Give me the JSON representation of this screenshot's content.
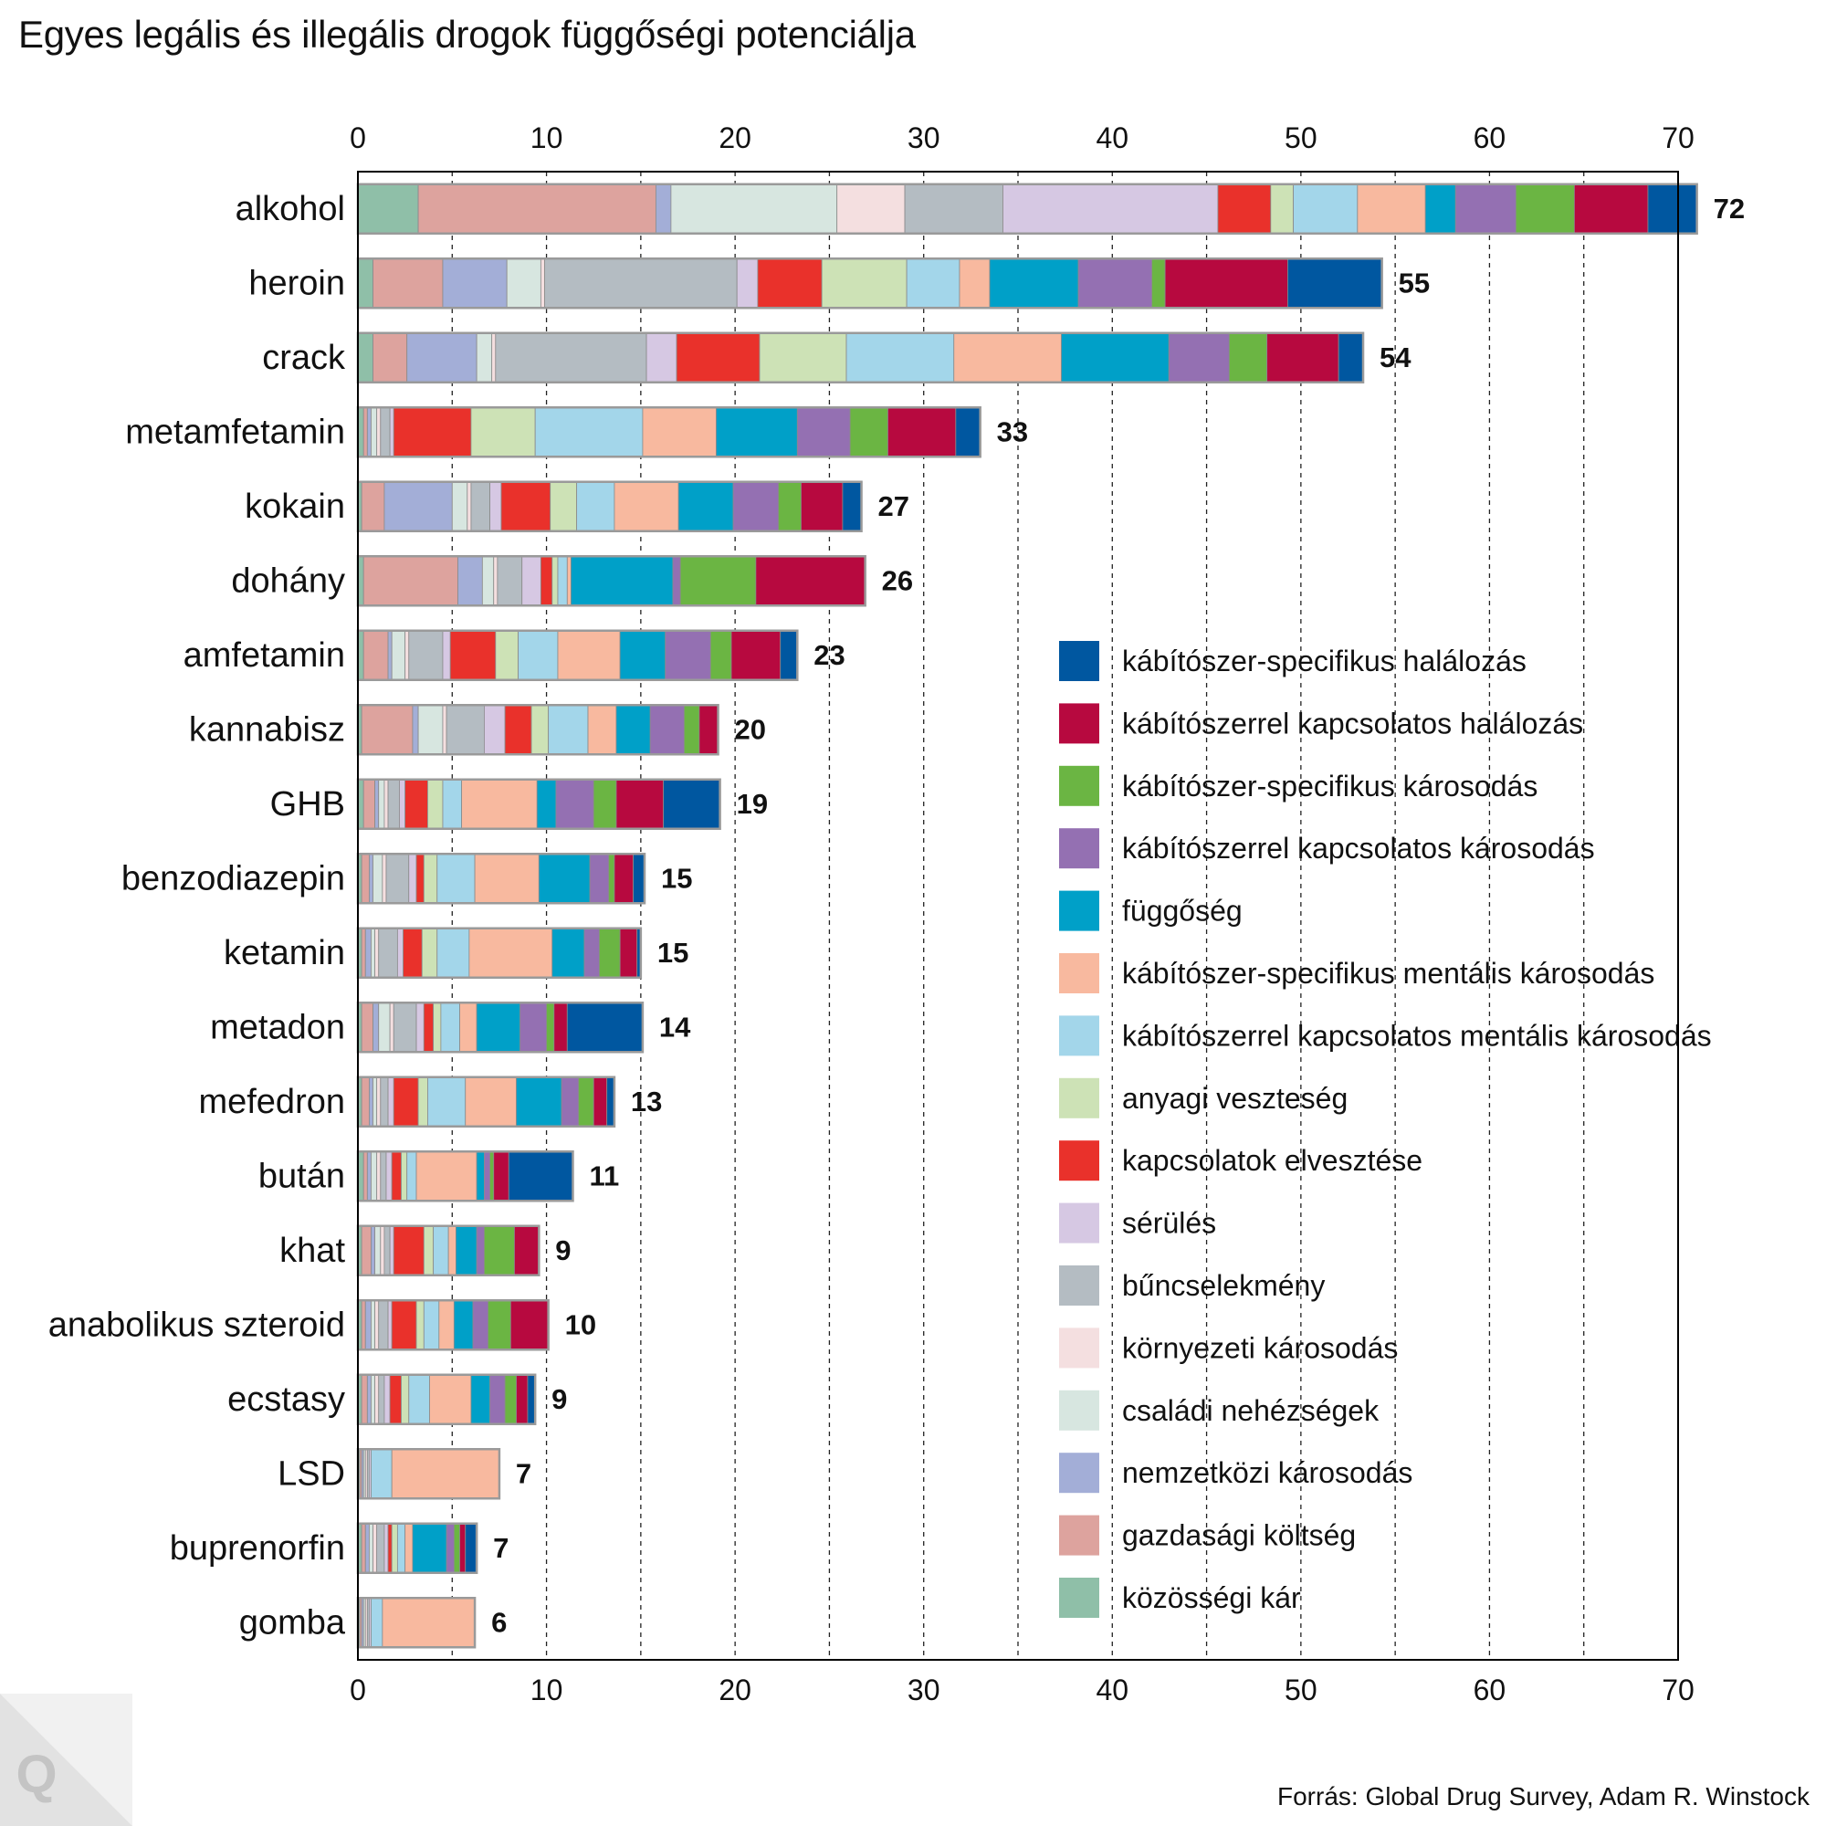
{
  "title": "Egyes legális és illegális drogok függőségi potenciálja",
  "source": "Forrás: Global Drug Survey, Adam R. Winstock",
  "logo_letter": "Q",
  "chart_data": {
    "type": "bar",
    "orientation": "horizontal",
    "stacked": true,
    "xlim": [
      0,
      70
    ],
    "x_ticks": [
      0,
      10,
      20,
      30,
      40,
      50,
      60,
      70
    ],
    "x_tick_labels": [
      "0",
      "10",
      "20",
      "30",
      "40",
      "50",
      "60",
      "70"
    ],
    "axis_position": "top-and-bottom",
    "grid": "dashed vertical lines every 5",
    "legend_position": "right",
    "categories": [
      "alkohol",
      "heroin",
      "crack",
      "metamfetamin",
      "kokain",
      "dohány",
      "amfetamin",
      "kannabisz",
      "GHB",
      "benzodiazepin",
      "ketamin",
      "metadon",
      "mefedron",
      "bután",
      "khat",
      "anabolikus szteroid",
      "ecstasy",
      "LSD",
      "buprenorfin",
      "gomba"
    ],
    "totals": [
      72,
      55,
      54,
      33,
      27,
      26,
      23,
      20,
      19,
      15,
      15,
      14,
      13,
      11,
      9,
      10,
      9,
      7,
      7,
      6
    ],
    "series": [
      {
        "name": "közösségi kár",
        "color": "#8fbfa8",
        "values": [
          3.2,
          0.8,
          0.8,
          0.3,
          0.2,
          0.3,
          0.3,
          0.2,
          0.3,
          0.2,
          0.2,
          0.2,
          0.2,
          0.3,
          0.2,
          0.2,
          0.2,
          0.1,
          0.2,
          0.1
        ]
      },
      {
        "name": "gazdasági költség",
        "color": "#dda39e",
        "values": [
          12.6,
          3.7,
          1.8,
          0.2,
          1.2,
          5.0,
          1.3,
          2.7,
          0.6,
          0.4,
          0.2,
          0.6,
          0.4,
          0.2,
          0.5,
          0.2,
          0.3,
          0.1,
          0.2,
          0.1
        ]
      },
      {
        "name": "nemzetközi károsodás",
        "color": "#a3aed7",
        "values": [
          0.8,
          3.4,
          3.7,
          0.2,
          3.6,
          1.3,
          0.2,
          0.3,
          0.2,
          0.2,
          0.3,
          0.3,
          0.2,
          0.2,
          0.2,
          0.3,
          0.2,
          0.1,
          0.2,
          0.1
        ]
      },
      {
        "name": "családi nehézségek",
        "color": "#d7e6e0",
        "values": [
          8.8,
          1.8,
          0.8,
          0.3,
          0.8,
          0.6,
          0.7,
          1.3,
          0.3,
          0.5,
          0.2,
          0.6,
          0.2,
          0.3,
          0.3,
          0.2,
          0.2,
          0.1,
          0.2,
          0.1
        ]
      },
      {
        "name": "környezeti károsodás",
        "color": "#f4dfe0",
        "values": [
          3.6,
          0.2,
          0.2,
          0.2,
          0.2,
          0.2,
          0.2,
          0.2,
          0.2,
          0.2,
          0.2,
          0.2,
          0.2,
          0.2,
          0.2,
          0.2,
          0.2,
          0.1,
          0.2,
          0.1
        ]
      },
      {
        "name": "bűncselekmény",
        "color": "#b4bcc2",
        "values": [
          5.2,
          10.2,
          8.0,
          0.5,
          1.0,
          1.3,
          1.8,
          2.0,
          0.6,
          1.2,
          1.0,
          1.2,
          0.4,
          0.3,
          0.3,
          0.5,
          0.3,
          0.1,
          0.4,
          0.1
        ]
      },
      {
        "name": "sérülés",
        "color": "#d6c8e3",
        "values": [
          11.4,
          1.1,
          1.6,
          0.2,
          0.6,
          1.0,
          0.4,
          1.1,
          0.3,
          0.4,
          0.3,
          0.4,
          0.3,
          0.3,
          0.2,
          0.2,
          0.3,
          0.1,
          0.2,
          0.1
        ]
      },
      {
        "name": "kapcsolatok elvesztése",
        "color": "#e9312b",
        "values": [
          2.8,
          3.4,
          4.4,
          4.1,
          2.6,
          0.6,
          2.4,
          1.4,
          1.2,
          0.4,
          1.0,
          0.5,
          1.3,
          0.5,
          1.6,
          1.3,
          0.6,
          0.0,
          0.2,
          0.0
        ]
      },
      {
        "name": "anyagi veszteség",
        "color": "#cde2b6",
        "values": [
          1.2,
          4.5,
          4.6,
          3.4,
          1.4,
          0.3,
          1.2,
          0.9,
          0.8,
          0.7,
          0.8,
          0.4,
          0.5,
          0.3,
          0.5,
          0.4,
          0.4,
          0.0,
          0.3,
          0.0
        ]
      },
      {
        "name": "kábítószerrel kapcsolatos mentális károsodás",
        "color": "#a3d6ea",
        "values": [
          3.4,
          2.8,
          5.7,
          5.7,
          2.0,
          0.5,
          2.1,
          2.1,
          1.0,
          2.0,
          1.7,
          1.0,
          2.0,
          0.5,
          0.8,
          0.8,
          1.1,
          1.1,
          0.4,
          0.6
        ]
      },
      {
        "name": "kábítószer-specifikus mentális károsodás",
        "color": "#f8b99f",
        "values": [
          3.6,
          1.6,
          5.7,
          3.9,
          3.4,
          0.2,
          3.3,
          1.5,
          4.0,
          3.4,
          4.4,
          0.9,
          2.7,
          3.2,
          0.4,
          0.8,
          2.2,
          5.7,
          0.4,
          4.9
        ]
      },
      {
        "name": "függőség",
        "color": "#00a0c8",
        "values": [
          1.6,
          4.7,
          5.7,
          4.3,
          2.9,
          5.4,
          2.4,
          1.8,
          1.0,
          2.7,
          1.7,
          2.3,
          2.4,
          0.4,
          1.1,
          1.0,
          1.0,
          0.0,
          1.8,
          0.0
        ]
      },
      {
        "name": "kábítószerrel kapcsolatos károsodás",
        "color": "#9470b2",
        "values": [
          3.2,
          3.9,
          3.2,
          2.8,
          2.4,
          0.4,
          2.4,
          1.8,
          2.0,
          1.0,
          0.8,
          1.4,
          0.9,
          0.3,
          0.4,
          0.8,
          0.8,
          0.0,
          0.4,
          0.0
        ]
      },
      {
        "name": "kábítószer-specifikus károsodás",
        "color": "#6bb543",
        "values": [
          3.1,
          0.7,
          2.0,
          2.0,
          1.2,
          4.0,
          1.1,
          0.8,
          1.2,
          0.3,
          1.1,
          0.4,
          0.8,
          0.2,
          1.6,
          1.2,
          0.6,
          0.0,
          0.3,
          0.0
        ]
      },
      {
        "name": "kábítószerrel kapcsolatos halálozás",
        "color": "#b7093f",
        "values": [
          3.9,
          6.5,
          3.8,
          3.6,
          2.2,
          5.8,
          2.6,
          1.0,
          2.5,
          1.0,
          0.9,
          0.7,
          0.7,
          0.8,
          1.3,
          2.0,
          0.6,
          0.0,
          0.3,
          0.0
        ]
      },
      {
        "name": "kábítószer-specifikus halálozás",
        "color": "#0057a0",
        "values": [
          2.6,
          5.0,
          1.3,
          1.3,
          1.0,
          0.0,
          0.9,
          0.0,
          3.0,
          0.6,
          0.2,
          4.0,
          0.4,
          3.4,
          0.0,
          0.0,
          0.4,
          0.0,
          0.6,
          0.0
        ]
      }
    ]
  }
}
